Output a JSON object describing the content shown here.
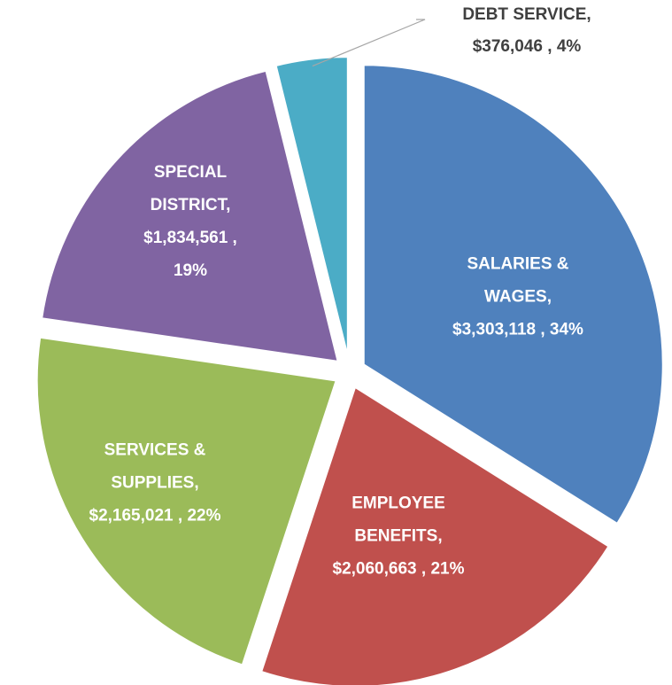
{
  "chart_data": {
    "type": "pie",
    "categories": [
      "SALARIES & WAGES",
      "EMPLOYEE BENEFITS",
      "SERVICES & SUPPLIES",
      "SPECIAL DISTRICT",
      "DEBT SERVICE"
    ],
    "values": [
      3303118,
      2060663,
      2165021,
      1834561,
      376046
    ],
    "value_labels": [
      "$3,303,118",
      "$2,060,663",
      "$2,165,021",
      "$1,834,561",
      "$376,046"
    ],
    "percentages": [
      34,
      21,
      22,
      19,
      4
    ],
    "percentage_labels": [
      "34%",
      "21%",
      "22%",
      "19%",
      "4%"
    ],
    "colors": [
      "#4f81bd",
      "#c0504d",
      "#9bbb59",
      "#8064a2",
      "#4bacc6"
    ]
  }
}
